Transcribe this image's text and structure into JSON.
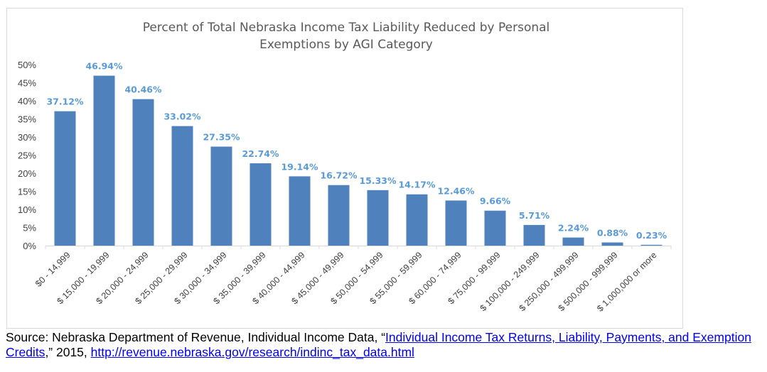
{
  "chart_data": {
    "type": "bar",
    "title_lines": [
      "Percent of Total Nebraska Income Tax Liability Reduced by Personal",
      "Exemptions by AGI Category"
    ],
    "categories": [
      "$0 - 14,999",
      "$ 15,000 - 19,999",
      "$ 20,000 - 24,999",
      "$ 25,000 - 29,999",
      "$ 30,000 - 34,999",
      "$ 35,000 - 39,999",
      "$ 40,000 - 44,999",
      "$ 45,000 - 49,999",
      "$ 50,000 - 54,999",
      "$ 55,000 - 59,999",
      "$ 60,000 - 74,999",
      "$ 75,000 - 99,999",
      "$ 100,000 - 249,999",
      "$ 250,000 - 499,999",
      "$ 500,000 - 999,999",
      "$ 1,000,000 or more"
    ],
    "values": [
      37.12,
      46.94,
      40.46,
      33.02,
      27.35,
      22.74,
      19.14,
      16.72,
      15.33,
      14.17,
      12.46,
      9.66,
      5.71,
      2.24,
      0.88,
      0.23
    ],
    "data_labels": [
      "37.12%",
      "46.94%",
      "40.46%",
      "33.02%",
      "27.35%",
      "22.74%",
      "19.14%",
      "16.72%",
      "15.33%",
      "14.17%",
      "12.46%",
      "9.66%",
      "5.71%",
      "2.24%",
      "0.88%",
      "0.23%"
    ],
    "y_ticks": [
      0,
      5,
      10,
      15,
      20,
      25,
      30,
      35,
      40,
      45,
      50
    ],
    "y_tick_labels": [
      "0%",
      "5%",
      "10%",
      "15%",
      "20%",
      "25%",
      "30%",
      "35%",
      "40%",
      "45%",
      "50%"
    ],
    "ylim": [
      0,
      50
    ],
    "xlabel": "",
    "ylabel": "",
    "grid": false,
    "legend": "none",
    "bar_color": "#4f81bd",
    "label_color": "#5b9bd5"
  },
  "source": {
    "prefix": "Source: Nebraska Department of Revenue, Individual Income Data, “",
    "link_text": "Individual Income Tax Returns, Liability, Payments, and Exemption Credits",
    "middle": ",” 2015, ",
    "url_text": "http://revenue.nebraska.gov/research/indinc_tax_data.html"
  }
}
